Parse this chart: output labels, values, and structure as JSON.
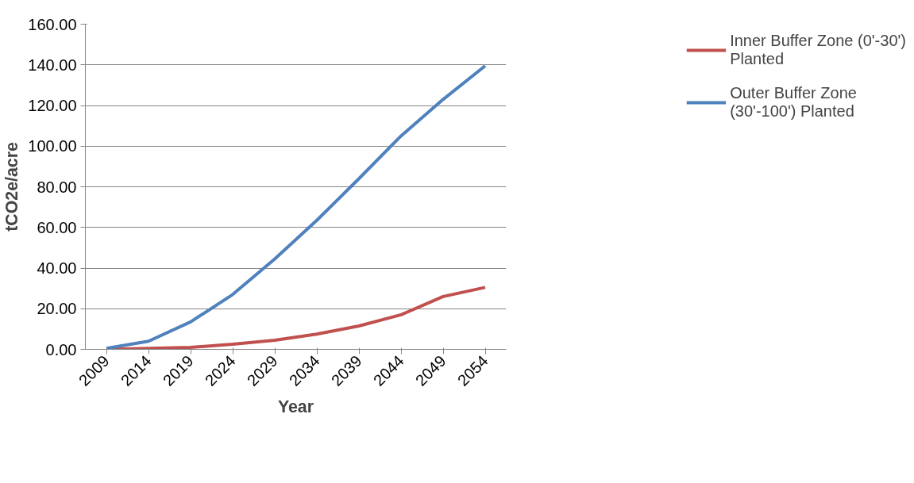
{
  "chart_data": {
    "type": "line",
    "xlabel": "Year",
    "ylabel": "tCO2e/acre",
    "categories": [
      "2009",
      "2014",
      "2019",
      "2024",
      "2029",
      "2034",
      "2039",
      "2044",
      "2049",
      "2054"
    ],
    "series": [
      {
        "name": "Inner Buffer Zone (0'-30') Planted",
        "color": "#c0504d",
        "values": [
          0,
          0.5,
          1,
          2.5,
          4.5,
          7.5,
          11.5,
          17,
          26,
          30.5
        ]
      },
      {
        "name": "Outer Buffer Zone (30'-100') Planted",
        "color": "#4f81bd",
        "values": [
          0.5,
          4,
          13.5,
          27,
          44.5,
          63.5,
          84,
          105,
          123,
          139.5
        ]
      }
    ],
    "ylim": [
      0,
      160
    ],
    "yticks": [
      {
        "value": 0,
        "label": "0.00"
      },
      {
        "value": 20,
        "label": "20.00"
      },
      {
        "value": 40,
        "label": "40.00"
      },
      {
        "value": 60,
        "label": "60.00"
      },
      {
        "value": 80,
        "label": "80.00"
      },
      {
        "value": 100,
        "label": "100.00"
      },
      {
        "value": 120,
        "label": "120.00"
      },
      {
        "value": 140,
        "label": "140.00"
      },
      {
        "value": 160,
        "label": "160.00"
      }
    ],
    "grid": "y",
    "legend": "right",
    "marker": "none",
    "line_style": "solid"
  }
}
